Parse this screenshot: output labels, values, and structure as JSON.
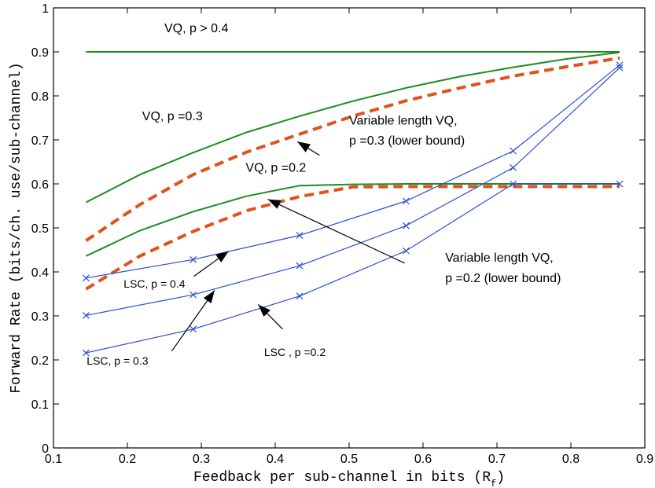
{
  "chart_data": {
    "type": "line",
    "xlabel": "Feedback per sub-channel in bits (R",
    "xlabel_sub": "f",
    "xlabel_end": ")",
    "ylabel": "Forward Rate (bits/ch. use/sub-channel)",
    "xlim": [
      0.1,
      0.9
    ],
    "ylim": [
      0,
      1
    ],
    "xticks": [
      0.1,
      0.2,
      0.3,
      0.4,
      0.5,
      0.6,
      0.7,
      0.8,
      0.9
    ],
    "xtick_labels": [
      "0.1",
      "0.2",
      "0.3",
      "0.4",
      "0.5",
      "0.6",
      "0.7",
      "0.8",
      "0.9"
    ],
    "yticks": [
      0,
      0.1,
      0.2,
      0.3,
      0.4,
      0.5,
      0.6,
      0.7,
      0.8,
      0.9,
      1
    ],
    "ytick_labels": [
      "0",
      "0.1",
      "0.2",
      "0.3",
      "0.4",
      "0.5",
      "0.6",
      "0.7",
      "0.8",
      "0.9",
      "1"
    ],
    "grid": false,
    "series": [
      {
        "style": "green-solid",
        "x": [
          0.144,
          0.866
        ],
        "y": [
          0.9,
          0.9
        ]
      },
      {
        "style": "green-solid",
        "x": [
          0.144,
          0.217,
          0.289,
          0.361,
          0.433,
          0.505,
          0.577,
          0.65,
          0.722,
          0.794,
          0.866
        ],
        "y": [
          0.558,
          0.621,
          0.671,
          0.717,
          0.754,
          0.788,
          0.818,
          0.844,
          0.865,
          0.884,
          0.899
        ]
      },
      {
        "style": "orange-dashed",
        "x": [
          0.144,
          0.217,
          0.289,
          0.361,
          0.433,
          0.505,
          0.577,
          0.65,
          0.722,
          0.794,
          0.866
        ],
        "y": [
          0.471,
          0.553,
          0.621,
          0.672,
          0.713,
          0.754,
          0.789,
          0.818,
          0.845,
          0.866,
          0.886
        ]
      },
      {
        "style": "green-solid",
        "x": [
          0.144,
          0.217,
          0.289,
          0.361,
          0.433,
          0.505,
          0.577,
          0.65,
          0.722,
          0.794,
          0.866
        ],
        "y": [
          0.436,
          0.494,
          0.537,
          0.572,
          0.596,
          0.599,
          0.6,
          0.6,
          0.6,
          0.6,
          0.6
        ]
      },
      {
        "style": "orange-dashed",
        "x": [
          0.144,
          0.217,
          0.289,
          0.361,
          0.433,
          0.505,
          0.577,
          0.65,
          0.722,
          0.794,
          0.866
        ],
        "y": [
          0.361,
          0.436,
          0.492,
          0.539,
          0.571,
          0.593,
          0.594,
          0.594,
          0.594,
          0.594,
          0.594
        ]
      },
      {
        "style": "blue-x",
        "x": [
          0.144,
          0.289,
          0.433,
          0.577,
          0.722,
          0.866
        ],
        "y": [
          0.386,
          0.428,
          0.483,
          0.561,
          0.675,
          0.87
        ]
      },
      {
        "style": "blue-x",
        "x": [
          0.144,
          0.289,
          0.433,
          0.577,
          0.722,
          0.866
        ],
        "y": [
          0.301,
          0.348,
          0.414,
          0.505,
          0.637,
          0.864
        ]
      },
      {
        "style": "blue-x",
        "x": [
          0.144,
          0.289,
          0.433,
          0.577,
          0.722,
          0.866
        ],
        "y": [
          0.216,
          0.27,
          0.345,
          0.448,
          0.6,
          0.6
        ]
      }
    ],
    "colors": {
      "green": "#1e8c1e",
      "orange": "#e0521c",
      "blue": "#2a4fd6"
    },
    "annotations": [
      {
        "text": "VQ, p > 0.4",
        "x": 0.25,
        "y": 0.945
      },
      {
        "text": "VQ, p =0.3",
        "x": 0.22,
        "y": 0.745
      },
      {
        "text": "Variable length VQ,",
        "x": 0.5,
        "y": 0.735
      },
      {
        "text": "p =0.3 (lower bound)",
        "x": 0.5,
        "y": 0.689
      },
      {
        "text": "VQ, p =0.2",
        "x": 0.36,
        "y": 0.628
      },
      {
        "text": "Variable length VQ,",
        "x": 0.63,
        "y": 0.423
      },
      {
        "text": "p =0.2 (lower bound)",
        "x": 0.63,
        "y": 0.377
      },
      {
        "text": "LSC, p = 0.4",
        "x": 0.195,
        "y": 0.364
      },
      {
        "text": "LSC ,  p =0.2",
        "x": 0.385,
        "y": 0.209
      },
      {
        "text": "LSC, p = 0.3",
        "x": 0.145,
        "y": 0.189
      }
    ],
    "arrows": [
      {
        "from": [
          0.29,
          0.39
        ],
        "to": [
          0.337,
          0.447
        ]
      },
      {
        "from": [
          0.26,
          0.22
        ],
        "to": [
          0.318,
          0.358
        ]
      },
      {
        "from": [
          0.41,
          0.27
        ],
        "to": [
          0.377,
          0.326
        ]
      },
      {
        "from": [
          0.46,
          0.665
        ],
        "to": [
          0.43,
          0.696
        ]
      },
      {
        "from": [
          0.575,
          0.42
        ],
        "to": [
          0.39,
          0.565
        ]
      }
    ]
  }
}
